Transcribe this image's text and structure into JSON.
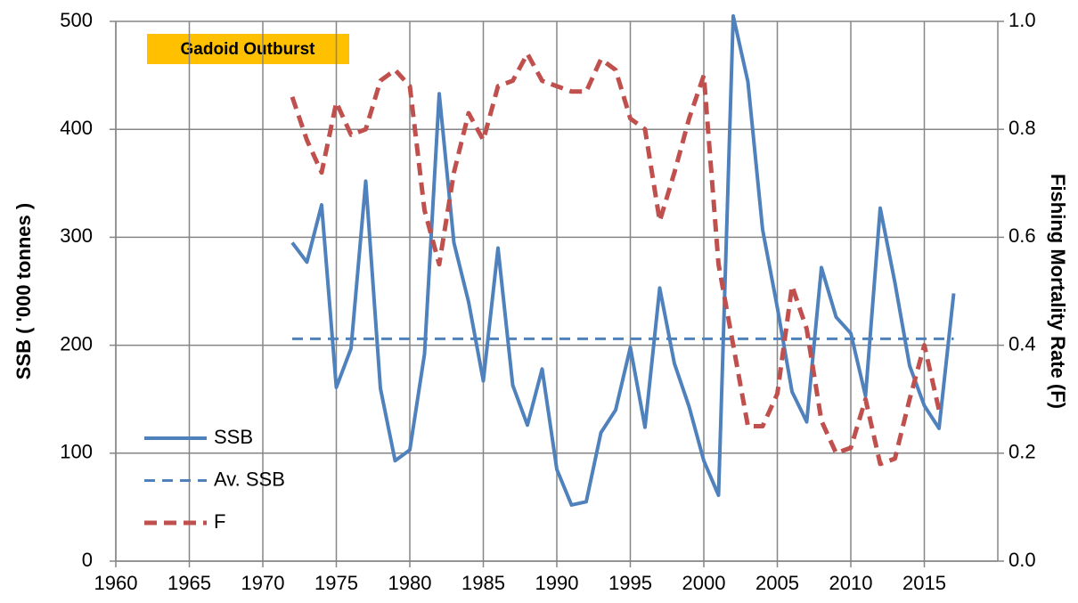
{
  "chart_data": {
    "type": "line",
    "x": [
      1972,
      1973,
      1974,
      1975,
      1976,
      1977,
      1978,
      1979,
      1980,
      1981,
      1982,
      1983,
      1984,
      1985,
      1986,
      1987,
      1988,
      1989,
      1990,
      1991,
      1992,
      1993,
      1994,
      1995,
      1996,
      1997,
      1998,
      1999,
      2000,
      2001,
      2002,
      2003,
      2004,
      2005,
      2006,
      2007,
      2008,
      2009,
      2010,
      2011,
      2012,
      2013,
      2014,
      2015,
      2016,
      2017
    ],
    "series": [
      {
        "name": "SSB",
        "color": "#4f81bd",
        "style": "solid",
        "values": [
          295,
          277,
          330,
          161,
          197,
          352,
          160,
          93,
          103,
          192,
          433,
          295,
          240,
          167,
          290,
          163,
          126,
          178,
          85,
          52,
          55,
          119,
          140,
          198,
          124,
          253,
          183,
          143,
          93,
          61,
          505,
          444,
          307,
          235,
          157,
          129,
          272,
          226,
          211,
          153,
          327,
          258,
          181,
          144,
          123,
          248
        ]
      },
      {
        "name": "Av. SSB",
        "color": "#4f81bd",
        "style": "dashed",
        "x": [
          1972,
          2017
        ],
        "values": [
          206,
          206
        ]
      },
      {
        "name": "F",
        "color": "#c0504d",
        "style": "dashed",
        "axis": "y2",
        "values": [
          0.86,
          0.78,
          0.72,
          0.85,
          0.79,
          0.8,
          0.89,
          0.91,
          0.88,
          0.65,
          0.55,
          0.72,
          0.83,
          0.78,
          0.88,
          0.89,
          0.94,
          0.89,
          0.88,
          0.87,
          0.87,
          0.93,
          0.91,
          0.82,
          0.8,
          0.63,
          0.72,
          0.82,
          0.9,
          0.55,
          0.4,
          0.25,
          0.25,
          0.31,
          0.51,
          0.43,
          0.26,
          0.2,
          0.21,
          0.3,
          0.18,
          0.19,
          0.3,
          0.4,
          0.28,
          null
        ]
      }
    ],
    "xlim": [
      1960,
      2020
    ],
    "xticks": [
      1960,
      1965,
      1970,
      1975,
      1980,
      1985,
      1990,
      1995,
      2000,
      2005,
      2010,
      2015
    ],
    "ylim": [
      0,
      500
    ],
    "yticks": [
      0,
      100,
      200,
      300,
      400,
      500
    ],
    "y2lim": [
      0,
      1
    ],
    "y2ticks": [
      {
        "value": 0,
        "label": "0.0"
      },
      0.2,
      0.4,
      0.6,
      0.8,
      {
        "value": 1,
        "label": "1.0"
      }
    ],
    "ylabel": "SSB ( '000 tonnes )",
    "y2label": "Fishing Mortality Rate (F)",
    "annotation": "Gadoid Outburst",
    "grid": true,
    "legend": "lower left"
  }
}
